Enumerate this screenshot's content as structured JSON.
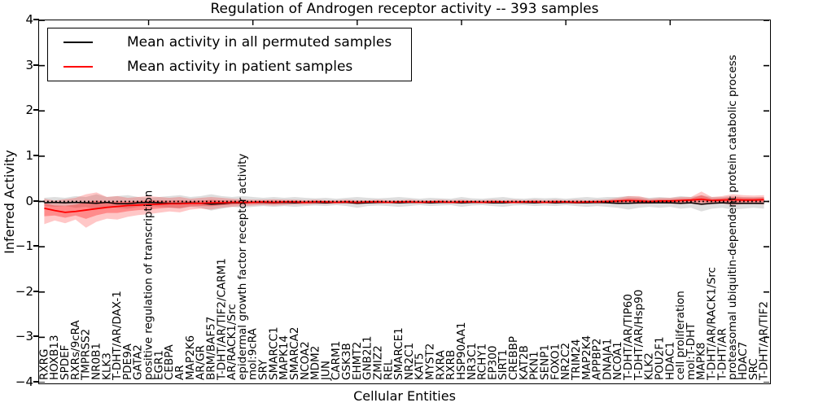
{
  "figure": {
    "title": "Regulation of Androgen receptor activity -- 393 samples",
    "xlabel": "Cellular Entities",
    "ylabel": "Inferred Activity"
  },
  "legend": {
    "items": [
      {
        "label": "Mean activity in all permuted samples",
        "color": "#000000"
      },
      {
        "label": "Mean activity in patient samples",
        "color": "#ff0000"
      }
    ]
  },
  "chart_data": {
    "type": "line",
    "title": "Regulation of Androgen receptor activity -- 393 samples",
    "xlabel": "Cellular Entities",
    "ylabel": "Inferred Activity",
    "ylim": [
      -4,
      4
    ],
    "ytick_labels": [
      "4",
      "3",
      "2",
      "1",
      "0",
      "−1",
      "−2",
      "−3",
      "−4"
    ],
    "ytick_values": [
      4,
      3,
      2,
      1,
      0,
      -1,
      -2,
      -3,
      -4
    ],
    "grid": false,
    "legend_position": "upper left",
    "sample_count": "393 samples",
    "categories": [
      "RXRG",
      "HOXB13",
      "SPDEF",
      "RXRs/9cRA",
      "TMPRSS2",
      "NR0B1",
      "KLK3",
      "T-DHT/AR/DAX-1",
      "PDE9A",
      "GATA2",
      "positive regulation of transcription",
      "EGR1",
      "CEBPA",
      "AR",
      "MAP2K6",
      "AR/GR",
      "BRM/BAF57",
      "T-DHT/AR/TIF2/CARM1",
      "AR/RACK1/Src",
      "epidermal growth factor receptor activity",
      "mol:9cRA",
      "SRY",
      "SMARCC1",
      "MAPK14",
      "SMARCA2",
      "NCOA2",
      "MDM2",
      "JUN",
      "CARM1",
      "GSK3B",
      "EHMT2",
      "GNB2L1",
      "ZMIZ2",
      "REL",
      "SMARCE1",
      "NR2C1",
      "KAT5",
      "MYST2",
      "RXRA",
      "RXRB",
      "HSP90AA1",
      "NR3C1",
      "RCHY1",
      "EP300",
      "SIRT1",
      "CREBBP",
      "KAT2B",
      "PKN1",
      "SENP1",
      "FOXO1",
      "NR2C2",
      "TRIM24",
      "MAP2K4",
      "APPBP2",
      "DNAJA1",
      "NCOA1",
      "T-DHT/AR/TIP60",
      "T-DHT/AR/Hsp90",
      "KLK2",
      "POU2F1",
      "HDAC1",
      "cell proliferation",
      "mol:T-DHT",
      "MAPK8",
      "T-DHT/AR/RACK1/Src",
      "T-DHT/AR",
      "proteasomal ubiquitin-dependent protein catabolic process",
      "HDAC7",
      "SRC",
      "T-DHT/AR/TIF2"
    ],
    "series": [
      {
        "name": "Mean activity in all permuted samples",
        "color": "#000000",
        "width": 1.5,
        "values": [
          -0.03,
          -0.02,
          -0.03,
          -0.02,
          -0.03,
          -0.04,
          -0.02,
          -0.05,
          -0.05,
          -0.03,
          -0.02,
          -0.03,
          -0.04,
          -0.04,
          -0.03,
          -0.04,
          -0.06,
          -0.05,
          -0.03,
          -0.03,
          -0.02,
          -0.02,
          -0.03,
          -0.02,
          -0.03,
          -0.02,
          -0.02,
          -0.03,
          -0.02,
          -0.02,
          -0.04,
          -0.03,
          -0.02,
          -0.02,
          -0.03,
          -0.02,
          -0.02,
          -0.03,
          -0.02,
          -0.02,
          -0.03,
          -0.02,
          -0.02,
          -0.03,
          -0.03,
          -0.02,
          -0.02,
          -0.03,
          -0.02,
          -0.03,
          -0.02,
          -0.03,
          -0.03,
          -0.02,
          -0.03,
          -0.04,
          -0.04,
          -0.03,
          -0.03,
          -0.03,
          -0.03,
          -0.04,
          -0.03,
          -0.06,
          -0.04,
          -0.03,
          -0.04,
          -0.04,
          -0.04,
          -0.04
        ]
      },
      {
        "name": "Mean activity in patient samples",
        "color": "#ff0000",
        "width": 1.8,
        "values": [
          -0.15,
          -0.2,
          -0.24,
          -0.22,
          -0.19,
          -0.16,
          -0.13,
          -0.11,
          -0.09,
          -0.08,
          -0.07,
          -0.06,
          -0.05,
          -0.05,
          -0.04,
          -0.04,
          -0.03,
          -0.03,
          -0.02,
          -0.02,
          -0.02,
          -0.01,
          -0.02,
          -0.01,
          -0.01,
          -0.02,
          -0.01,
          -0.01,
          -0.02,
          -0.01,
          -0.02,
          -0.01,
          -0.01,
          -0.02,
          -0.01,
          -0.01,
          -0.02,
          -0.01,
          -0.01,
          -0.02,
          -0.01,
          -0.01,
          -0.02,
          -0.01,
          -0.01,
          -0.02,
          -0.01,
          -0.01,
          -0.02,
          -0.01,
          -0.01,
          -0.02,
          -0.01,
          -0.01,
          0.0,
          0.01,
          0.02,
          0.01,
          0.0,
          0.01,
          0.01,
          0.02,
          0.03,
          0.05,
          0.02,
          0.03,
          0.04,
          0.03,
          0.03,
          0.04
        ]
      }
    ],
    "bands": [
      {
        "name": "permuted-samples-range",
        "color": "#999999",
        "opacity": 0.32,
        "low": [
          -0.1,
          -0.12,
          -0.1,
          -0.14,
          -0.12,
          -0.18,
          -0.12,
          -0.14,
          -0.16,
          -0.12,
          -0.1,
          -0.12,
          -0.14,
          -0.16,
          -0.12,
          -0.14,
          -0.2,
          -0.16,
          -0.12,
          -0.14,
          -0.12,
          -0.1,
          -0.12,
          -0.1,
          -0.12,
          -0.1,
          -0.09,
          -0.1,
          -0.08,
          -0.1,
          -0.14,
          -0.1,
          -0.09,
          -0.1,
          -0.12,
          -0.1,
          -0.08,
          -0.1,
          -0.09,
          -0.08,
          -0.12,
          -0.09,
          -0.08,
          -0.1,
          -0.12,
          -0.09,
          -0.08,
          -0.1,
          -0.09,
          -0.1,
          -0.08,
          -0.1,
          -0.12,
          -0.1,
          -0.12,
          -0.14,
          -0.18,
          -0.14,
          -0.12,
          -0.14,
          -0.12,
          -0.16,
          -0.14,
          -0.22,
          -0.16,
          -0.14,
          -0.18,
          -0.16,
          -0.14,
          -0.16
        ],
        "high": [
          0.08,
          0.1,
          0.08,
          0.12,
          0.1,
          0.16,
          0.1,
          0.12,
          0.14,
          0.1,
          0.08,
          0.1,
          0.12,
          0.14,
          0.1,
          0.12,
          0.16,
          0.12,
          0.1,
          0.12,
          0.1,
          0.08,
          0.1,
          0.08,
          0.1,
          0.08,
          0.07,
          0.08,
          0.06,
          0.08,
          0.1,
          0.08,
          0.07,
          0.08,
          0.1,
          0.08,
          0.06,
          0.08,
          0.07,
          0.06,
          0.1,
          0.07,
          0.06,
          0.08,
          0.1,
          0.07,
          0.06,
          0.08,
          0.07,
          0.08,
          0.06,
          0.08,
          0.1,
          0.08,
          0.1,
          0.1,
          0.12,
          0.1,
          0.08,
          0.1,
          0.08,
          0.12,
          0.1,
          0.14,
          0.1,
          0.1,
          0.12,
          0.1,
          0.1,
          0.1
        ]
      },
      {
        "name": "patient-samples-range",
        "color": "#ff0000",
        "opacity": 0.22,
        "inner_shrink": 0.5,
        "inner_opacity": 0.3,
        "around_series": 1,
        "low": [
          -0.5,
          -0.42,
          -0.48,
          -0.4,
          -0.58,
          -0.45,
          -0.38,
          -0.4,
          -0.34,
          -0.3,
          -0.28,
          -0.25,
          -0.22,
          -0.24,
          -0.18,
          -0.16,
          -0.18,
          -0.14,
          -0.12,
          -0.1,
          -0.09,
          -0.08,
          -0.09,
          -0.08,
          -0.07,
          -0.07,
          -0.06,
          -0.06,
          -0.05,
          -0.05,
          -0.06,
          -0.05,
          -0.05,
          -0.04,
          -0.05,
          -0.04,
          -0.04,
          -0.05,
          -0.04,
          -0.04,
          -0.05,
          -0.04,
          -0.04,
          -0.05,
          -0.04,
          -0.04,
          -0.05,
          -0.04,
          -0.04,
          -0.05,
          -0.04,
          -0.05,
          -0.04,
          -0.05,
          -0.04,
          -0.06,
          -0.05,
          -0.06,
          -0.05,
          -0.04,
          -0.05,
          -0.06,
          -0.05,
          -0.08,
          -0.06,
          -0.05,
          -0.08,
          -0.06,
          -0.06,
          -0.07
        ],
        "high": [
          0.06,
          0.02,
          0.05,
          0.08,
          0.16,
          0.2,
          0.1,
          0.12,
          0.08,
          0.1,
          0.12,
          0.1,
          0.08,
          0.1,
          0.06,
          0.08,
          0.1,
          0.08,
          0.06,
          0.05,
          0.04,
          0.04,
          0.05,
          0.04,
          0.04,
          0.03,
          0.04,
          0.03,
          0.03,
          0.04,
          0.03,
          0.03,
          0.04,
          0.03,
          0.03,
          0.04,
          0.03,
          0.03,
          0.04,
          0.03,
          0.04,
          0.03,
          0.03,
          0.04,
          0.03,
          0.04,
          0.03,
          0.04,
          0.03,
          0.04,
          0.03,
          0.04,
          0.03,
          0.04,
          0.05,
          0.08,
          0.12,
          0.12,
          0.06,
          0.08,
          0.08,
          0.1,
          0.1,
          0.22,
          0.1,
          0.12,
          0.16,
          0.14,
          0.13,
          0.14
        ]
      }
    ],
    "reference_line": {
      "y": 0,
      "style": "dotted",
      "color": "#000000"
    }
  }
}
